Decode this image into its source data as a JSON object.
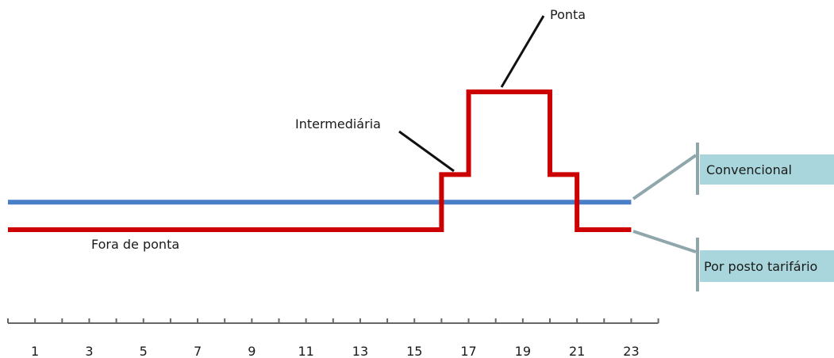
{
  "chart_data": {
    "type": "line",
    "title": "",
    "xlabel": "",
    "ylabel": "",
    "x_tick_labels": [
      "1",
      "3",
      "5",
      "7",
      "9",
      "11",
      "13",
      "15",
      "17",
      "19",
      "21",
      "23"
    ],
    "x_tick_hours": [
      1,
      3,
      5,
      7,
      9,
      11,
      13,
      15,
      17,
      19,
      21,
      23
    ],
    "xlim": [
      0,
      24
    ],
    "grid": false,
    "series": [
      {
        "name": "Convencional",
        "color": "#4a7fc8",
        "steps": [
          {
            "from": 0,
            "to": 23,
            "level": 1.0
          }
        ]
      },
      {
        "name": "Por posto tarifário",
        "color": "#cc0000",
        "steps": [
          {
            "from": 0,
            "to": 16,
            "level": 0
          },
          {
            "from": 16,
            "to": 17,
            "level": 2
          },
          {
            "from": 17,
            "to": 20,
            "level": 5
          },
          {
            "from": 20,
            "to": 21,
            "level": 2
          },
          {
            "from": 21,
            "to": 23,
            "level": 0
          }
        ]
      }
    ],
    "annotations": [
      {
        "text": "Fora de ponta"
      },
      {
        "text": "Intermediária"
      },
      {
        "text": "Ponta"
      }
    ],
    "legend_box_color": "#a9d6dc",
    "bracket_color": "#8fa6ab"
  }
}
